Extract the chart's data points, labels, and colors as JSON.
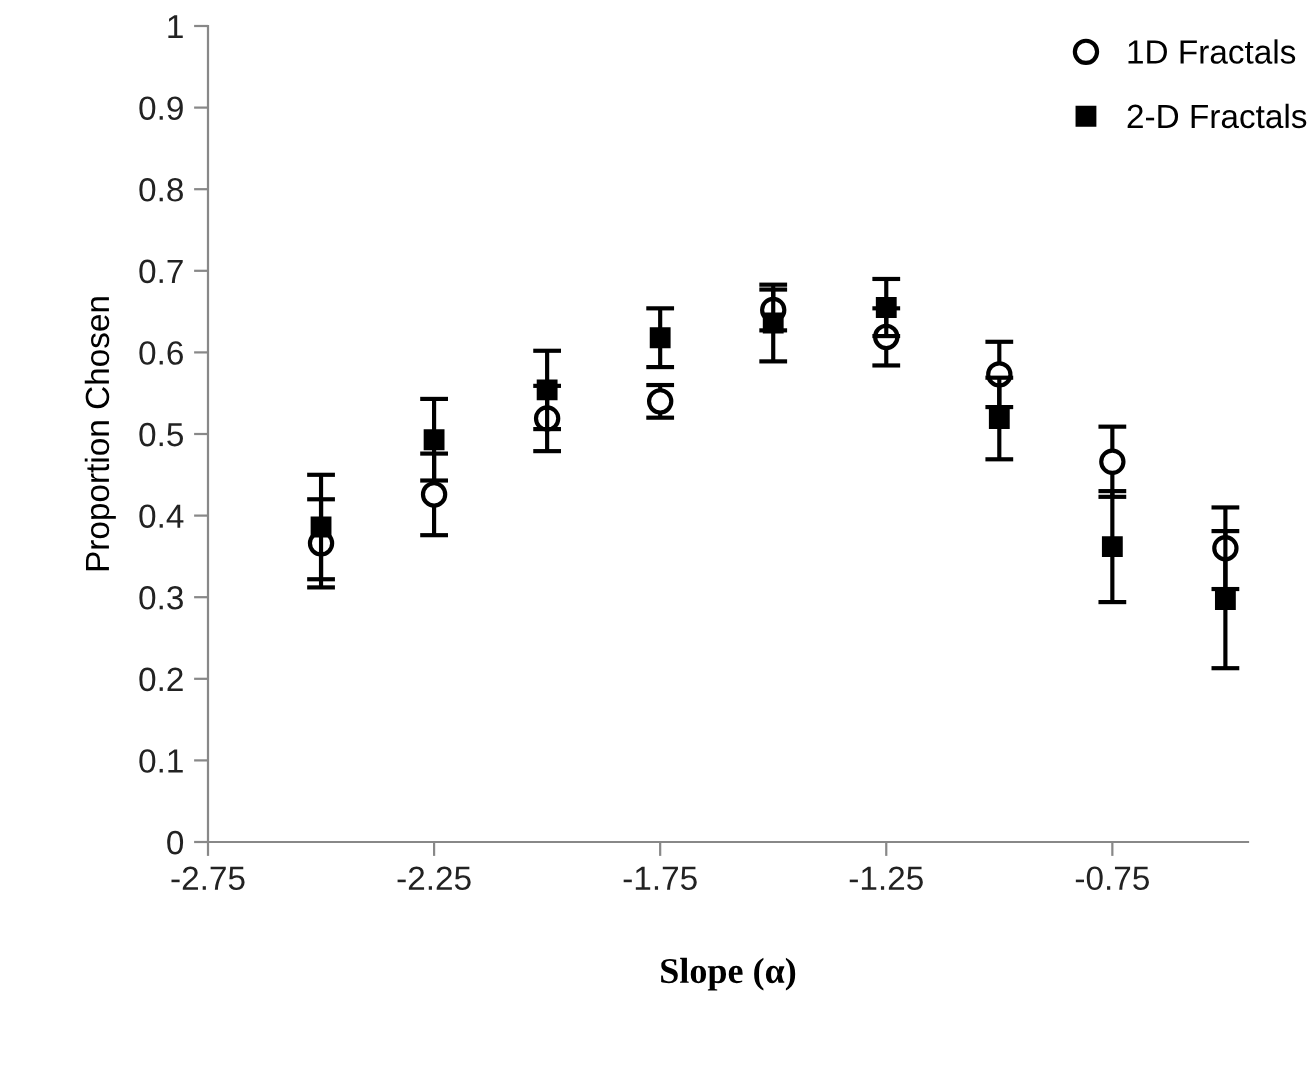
{
  "chart_data": {
    "type": "scatter",
    "xlabel": "Slope (α)",
    "ylabel": "Proportion Chosen",
    "xlim": [
      -2.75,
      -0.45
    ],
    "xticks": [
      -2.75,
      -2.25,
      -1.75,
      -1.25,
      -0.75
    ],
    "ylim": [
      0,
      1
    ],
    "yticks": [
      0,
      0.1,
      0.2,
      0.3,
      0.4,
      0.5,
      0.6,
      0.7,
      0.8,
      0.9,
      1
    ],
    "grid": false,
    "legend": "top right",
    "x": [
      -2.5,
      -2.25,
      -2.0,
      -1.75,
      -1.5,
      -1.25,
      -1.0,
      -0.75,
      -0.5
    ],
    "series": [
      {
        "name": "1D Fractals",
        "color": "#000000",
        "marker": "circle",
        "values": [
          0.366,
          0.426,
          0.519,
          0.54,
          0.652,
          0.619,
          0.573,
          0.466,
          0.36
        ],
        "errors": [
          0.054,
          0.05,
          0.04,
          0.02,
          0.025,
          0.035,
          0.04,
          0.043,
          0.05
        ]
      },
      {
        "name": "2-D Fractals",
        "color": "#000000",
        "marker": "square",
        "values": [
          0.386,
          0.493,
          0.554,
          0.618,
          0.636,
          0.655,
          0.519,
          0.362,
          0.297
        ],
        "errors": [
          0.064,
          0.05,
          0.048,
          0.036,
          0.047,
          0.035,
          0.05,
          0.068,
          0.084
        ]
      }
    ]
  }
}
